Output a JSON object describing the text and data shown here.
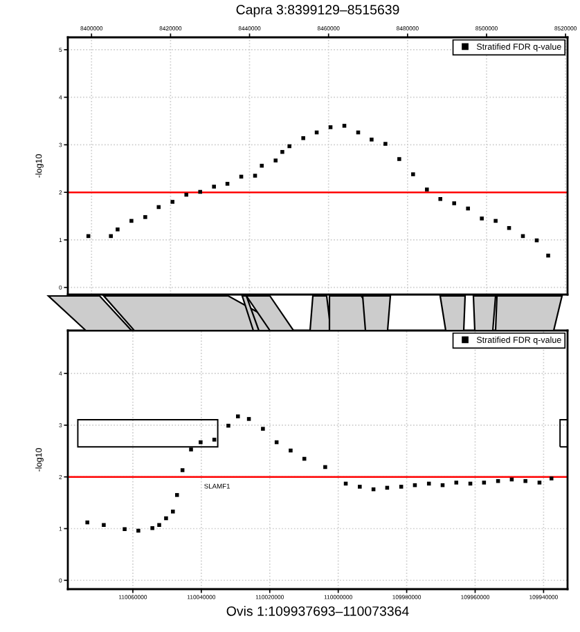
{
  "chart_data": [
    {
      "type": "scatter",
      "title": "Capra 3:8399129–8515639",
      "ylabel": "-log10",
      "marker": "square",
      "grid": true,
      "legend": "top right",
      "xlim": [
        8394000,
        8520500
      ],
      "xticks": [
        8400000,
        8420000,
        8440000,
        8460000,
        8480000,
        8500000,
        8520000
      ],
      "ylim": [
        -0.15,
        5.26
      ],
      "yticks": [
        0,
        1,
        2,
        3,
        4,
        5
      ],
      "ref_lines": [
        {
          "axis": "y",
          "value": 2,
          "color": "#ff0000"
        }
      ],
      "series": [
        {
          "name": "Stratified FDR q-value",
          "color": "#000000",
          "x": [
            8399200,
            8404900,
            8406600,
            8410100,
            8413600,
            8417000,
            8420500,
            8424000,
            8427500,
            8431000,
            8434400,
            8437900,
            8441400,
            8443100,
            8446600,
            8448300,
            8450100,
            8453600,
            8457000,
            8460500,
            8464000,
            8467500,
            8470900,
            8474400,
            8477900,
            8481400,
            8484900,
            8488300,
            8491800,
            8495300,
            8498800,
            8502300,
            8505700,
            8509200,
            8512700,
            8515600
          ],
          "values": [
            1.08,
            1.08,
            1.22,
            1.4,
            1.48,
            1.69,
            1.8,
            1.95,
            2.01,
            2.12,
            2.18,
            2.33,
            2.35,
            2.56,
            2.67,
            2.85,
            2.97,
            3.14,
            3.26,
            3.37,
            3.4,
            3.26,
            3.11,
            3.02,
            2.7,
            2.38,
            2.06,
            1.86,
            1.77,
            1.66,
            1.45,
            1.4,
            1.25,
            1.08,
            0.99,
            0.67
          ]
        }
      ]
    },
    {
      "type": "scatter",
      "xlabel": "Ovis 1:109937693–110073364",
      "ylabel": "-log10",
      "marker": "square",
      "grid": true,
      "legend": "top right",
      "xlim": [
        110079000,
        109933000
      ],
      "xticks": [
        110060000,
        110040000,
        110020000,
        110000000,
        109980000,
        109960000,
        109940000
      ],
      "ylim": [
        -0.17,
        4.83
      ],
      "yticks": [
        0,
        1,
        2,
        3,
        4
      ],
      "ref_lines": [
        {
          "axis": "y",
          "value": 2,
          "color": "#ff0000"
        }
      ],
      "annotations": [
        {
          "text": "SLAMF1",
          "x": 110035400,
          "y": 1.87
        }
      ],
      "series": [
        {
          "name": "Stratified FDR q-value",
          "color": "#000000",
          "x": [
            110073300,
            110068500,
            110062400,
            110058400,
            110054300,
            110052300,
            110050300,
            110048300,
            110047100,
            110045500,
            110043000,
            110040200,
            110036200,
            110032100,
            110029300,
            110026100,
            110022000,
            110018000,
            110013900,
            110009900,
            110003800,
            109997800,
            109993700,
            109989700,
            109985700,
            109981600,
            109977600,
            109973500,
            109969500,
            109965500,
            109961400,
            109957400,
            109953300,
            109949300,
            109945300,
            109941200,
            109937700
          ],
          "values": [
            1.12,
            1.07,
            0.99,
            0.96,
            1.01,
            1.07,
            1.2,
            1.33,
            1.65,
            2.13,
            2.53,
            2.67,
            2.72,
            2.99,
            3.17,
            3.12,
            2.93,
            2.67,
            2.51,
            2.35,
            2.19,
            1.87,
            1.81,
            1.76,
            1.79,
            1.81,
            1.84,
            1.87,
            1.84,
            1.89,
            1.87,
            1.89,
            1.92,
            1.95,
            1.92,
            1.89,
            1.97
          ]
        }
      ]
    }
  ]
}
